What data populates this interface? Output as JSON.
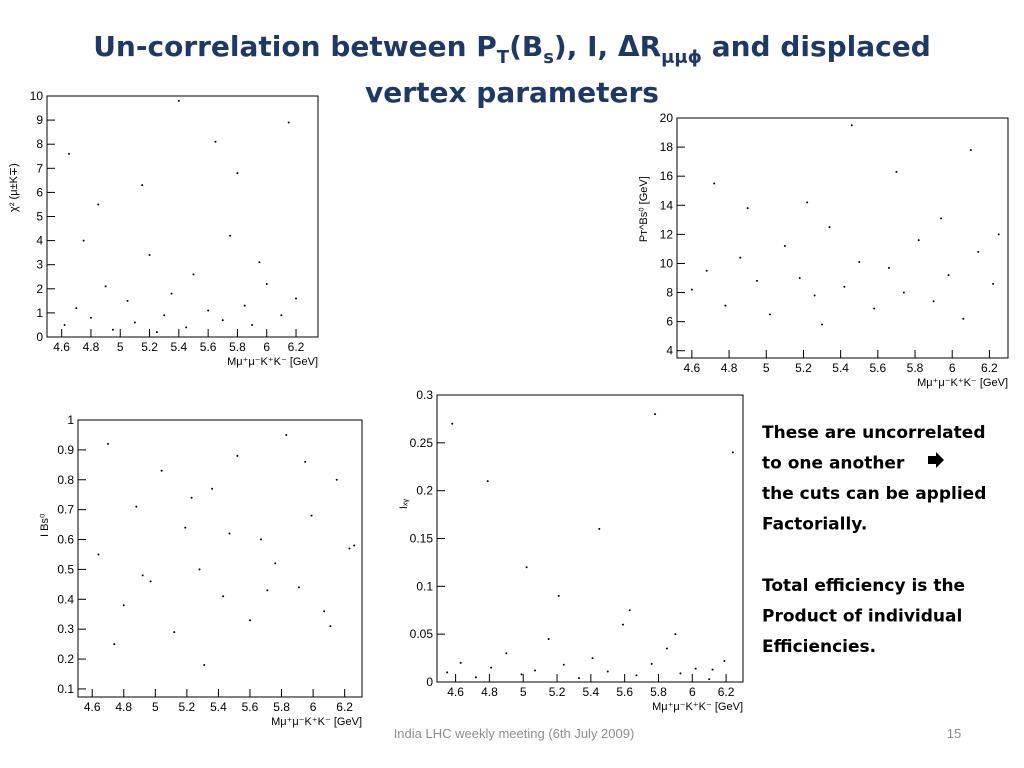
{
  "slide": {
    "title_parts": [
      "Un-correlation between P",
      "T",
      "(B",
      "s",
      "), I, ΔR",
      "μμϕ",
      " and displaced",
      "vertex parameters"
    ],
    "notes": [
      [
        "These are uncorrelated",
        "to one another",
        "the cuts can be applied",
        "Factorially."
      ],
      [
        "Total efficiency is the",
        "Product of individual",
        "Efficiencies."
      ]
    ],
    "footer": "India LHC weekly meeting (6th July 2009)",
    "page_number": "15"
  },
  "chart_data": [
    {
      "type": "scatter",
      "x_label": "Mμ⁺μ⁻K⁺K⁻ [GeV]",
      "y_label": "χ² (μ±K∓)",
      "xlim": [
        4.5,
        6.35
      ],
      "ylim": [
        0,
        10
      ],
      "xticks": [
        4.6,
        4.8,
        5,
        5.2,
        5.4,
        5.6,
        5.8,
        6,
        6.2
      ],
      "yticks": [
        0,
        1,
        2,
        3,
        4,
        5,
        6,
        7,
        8,
        9,
        10
      ],
      "color": "#000000",
      "x": [
        4.62,
        4.7,
        4.8,
        4.9,
        4.95,
        5.05,
        5.1,
        5.2,
        5.3,
        5.35,
        5.45,
        5.5,
        5.6,
        5.7,
        5.75,
        5.85,
        5.9,
        6.0,
        6.1,
        6.2,
        4.65,
        4.85,
        5.15,
        5.4,
        5.65,
        5.95,
        6.15,
        4.75,
        5.25,
        5.8
      ],
      "values": [
        0.5,
        1.2,
        0.8,
        2.1,
        0.3,
        1.5,
        0.6,
        3.4,
        0.9,
        1.8,
        0.4,
        2.6,
        1.1,
        0.7,
        4.2,
        1.3,
        0.5,
        2.2,
        0.9,
        1.6,
        7.6,
        5.5,
        6.3,
        9.8,
        8.1,
        3.1,
        8.9,
        4.0,
        0.2,
        6.8
      ]
    },
    {
      "type": "scatter",
      "x_label": "Mμ⁺μ⁻K⁺K⁻ [GeV]",
      "y_label": "Pᴛ^Bs⁰ [GeV]",
      "xlim": [
        4.52,
        6.3
      ],
      "ylim": [
        3.5,
        20
      ],
      "xticks": [
        4.6,
        4.8,
        5,
        5.2,
        5.4,
        5.6,
        5.8,
        6,
        6.2
      ],
      "yticks": [
        4,
        6,
        8,
        10,
        12,
        14,
        16,
        18,
        20
      ],
      "color": "#000000",
      "x": [
        4.6,
        4.68,
        4.78,
        4.86,
        4.95,
        5.02,
        5.1,
        5.18,
        5.26,
        5.34,
        5.42,
        5.5,
        5.58,
        5.66,
        5.74,
        5.82,
        5.9,
        5.98,
        6.06,
        6.14,
        6.22,
        4.72,
        4.9,
        5.22,
        5.46,
        5.7,
        5.94,
        6.1,
        5.3,
        6.25
      ],
      "values": [
        8.2,
        9.5,
        7.1,
        10.4,
        8.8,
        6.5,
        11.2,
        9.0,
        7.8,
        12.5,
        8.4,
        10.1,
        6.9,
        9.7,
        8.0,
        11.6,
        7.4,
        9.2,
        6.2,
        10.8,
        8.6,
        15.5,
        13.8,
        14.2,
        19.5,
        16.3,
        13.1,
        17.8,
        5.8,
        12.0
      ]
    },
    {
      "type": "scatter",
      "x_label": "Mμ⁺μ⁻K⁺K⁻ [GeV]",
      "y_label": "I Bs⁰",
      "xlim": [
        4.51,
        6.31
      ],
      "ylim": [
        0.073,
        1.0
      ],
      "xticks": [
        4.6,
        4.8,
        5,
        5.2,
        5.4,
        5.6,
        5.8,
        6,
        6.2
      ],
      "yticks": [
        0.1,
        0.2,
        0.3,
        0.4,
        0.5,
        0.6,
        0.7,
        0.8,
        0.9,
        1
      ],
      "color": "#000000",
      "x": [
        4.64,
        4.7,
        4.8,
        4.88,
        4.97,
        5.04,
        5.12,
        5.19,
        5.28,
        5.36,
        5.43,
        5.52,
        5.6,
        5.67,
        5.76,
        5.83,
        5.91,
        5.99,
        6.07,
        6.15,
        6.23,
        4.74,
        4.92,
        5.23,
        5.47,
        5.71,
        5.95,
        6.11,
        5.31,
        6.26
      ],
      "values": [
        0.55,
        0.92,
        0.38,
        0.71,
        0.46,
        0.83,
        0.29,
        0.64,
        0.5,
        0.77,
        0.41,
        0.88,
        0.33,
        0.6,
        0.52,
        0.95,
        0.44,
        0.68,
        0.36,
        0.8,
        0.57,
        0.25,
        0.48,
        0.74,
        0.62,
        0.43,
        0.86,
        0.31,
        0.18,
        0.58
      ]
    },
    {
      "type": "scatter",
      "x_label": "Mμ⁺μ⁻K⁺K⁻ [GeV]",
      "y_label": "Iₓᵧ",
      "xlim": [
        4.49,
        6.3
      ],
      "ylim": [
        0,
        0.3
      ],
      "xticks": [
        4.6,
        4.8,
        5,
        5.2,
        5.4,
        5.6,
        5.8,
        6,
        6.2
      ],
      "yticks": [
        0,
        0.05,
        0.1,
        0.15,
        0.2,
        0.25,
        0.3
      ],
      "color": "#000000",
      "x": [
        4.55,
        4.63,
        4.72,
        4.81,
        4.9,
        4.99,
        5.07,
        5.15,
        5.24,
        5.33,
        5.41,
        5.5,
        5.59,
        5.67,
        5.76,
        5.85,
        5.93,
        6.02,
        6.1,
        6.19,
        4.58,
        4.79,
        5.02,
        5.21,
        5.45,
        5.63,
        5.78,
        5.9,
        6.12,
        6.24
      ],
      "values": [
        0.01,
        0.02,
        0.005,
        0.015,
        0.03,
        0.008,
        0.012,
        0.045,
        0.018,
        0.004,
        0.025,
        0.011,
        0.06,
        0.007,
        0.019,
        0.035,
        0.009,
        0.014,
        0.003,
        0.022,
        0.27,
        0.21,
        0.12,
        0.09,
        0.16,
        0.075,
        0.28,
        0.05,
        0.013,
        0.24
      ]
    }
  ]
}
